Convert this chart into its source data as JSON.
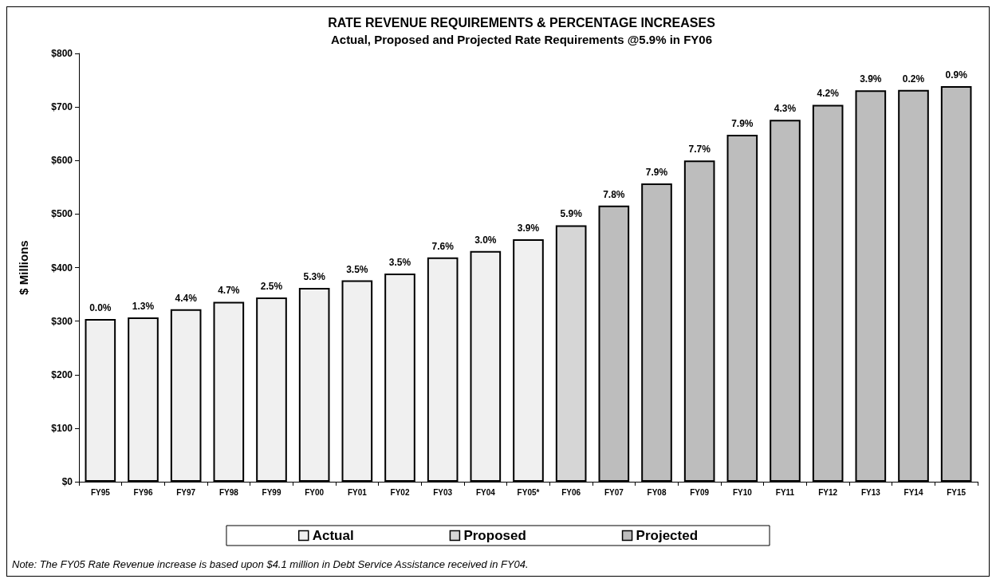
{
  "chart_data": {
    "type": "bar",
    "title": "RATE REVENUE REQUIREMENTS & PERCENTAGE INCREASES",
    "subtitle": "Actual, Proposed and Projected Rate Requirements @5.9% in FY06",
    "ylabel": "$ Millions",
    "categories": [
      "FY95",
      "FY96",
      "FY97",
      "FY98",
      "FY99",
      "FY00",
      "FY01",
      "FY02",
      "FY03",
      "FY04",
      "FY05*",
      "FY06",
      "FY07",
      "FY08",
      "FY09",
      "FY10",
      "FY11",
      "FY12",
      "FY13",
      "FY14",
      "FY15"
    ],
    "stacked": true,
    "series": [
      {
        "name": "Actual",
        "color": "#f0f0f0",
        "values": [
          304,
          307,
          322,
          336,
          344,
          362,
          376,
          389,
          419,
          431,
          453,
          null,
          null,
          null,
          null,
          null,
          null,
          null,
          null,
          null,
          null
        ]
      },
      {
        "name": "Proposed",
        "color": "#d6d6d6",
        "values": [
          null,
          null,
          null,
          null,
          null,
          null,
          null,
          null,
          null,
          null,
          null,
          479,
          null,
          null,
          null,
          null,
          null,
          null,
          null,
          null,
          null
        ]
      },
      {
        "name": "Projected",
        "color": "#bdbdbd",
        "values": [
          null,
          null,
          null,
          null,
          null,
          null,
          null,
          null,
          null,
          null,
          null,
          null,
          516,
          557,
          600,
          648,
          676,
          704,
          731,
          732,
          739
        ]
      }
    ],
    "ylim": [
      0,
      800
    ],
    "yticks": [
      {
        "value": 0,
        "label": "$0"
      },
      {
        "value": 100,
        "label": "$100"
      },
      {
        "value": 200,
        "label": "$200"
      },
      {
        "value": 300,
        "label": "$300"
      },
      {
        "value": 400,
        "label": "$400"
      },
      {
        "value": 500,
        "label": "$500"
      },
      {
        "value": 600,
        "label": "$600"
      },
      {
        "value": 700,
        "label": "$700"
      },
      {
        "value": 800,
        "label": "$800"
      }
    ],
    "grid": false,
    "legend": "bottom",
    "annotations": [
      {
        "text": "0.0%",
        "x": "FY95",
        "y": 304
      },
      {
        "text": "1.3%",
        "x": "FY96",
        "y": 307
      },
      {
        "text": "4.4%",
        "x": "FY97",
        "y": 322
      },
      {
        "text": "4.7%",
        "x": "FY98",
        "y": 336
      },
      {
        "text": "2.5%",
        "x": "FY99",
        "y": 344
      },
      {
        "text": "5.3%",
        "x": "FY00",
        "y": 362
      },
      {
        "text": "3.5%",
        "x": "FY01",
        "y": 376
      },
      {
        "text": "3.5%",
        "x": "FY02",
        "y": 389
      },
      {
        "text": "7.6%",
        "x": "FY03",
        "y": 419
      },
      {
        "text": "3.0%",
        "x": "FY04",
        "y": 431
      },
      {
        "text": "3.9%",
        "x": "FY05*",
        "y": 453
      },
      {
        "text": "5.9%",
        "x": "FY06",
        "y": 479
      },
      {
        "text": "7.8%",
        "x": "FY07",
        "y": 516
      },
      {
        "text": "7.9%",
        "x": "FY08",
        "y": 557
      },
      {
        "text": "7.7%",
        "x": "FY09",
        "y": 600
      },
      {
        "text": "7.9%",
        "x": "FY10",
        "y": 648
      },
      {
        "text": "4.3%",
        "x": "FY11",
        "y": 676
      },
      {
        "text": "4.2%",
        "x": "FY12",
        "y": 704
      },
      {
        "text": "3.9%",
        "x": "FY13",
        "y": 731
      },
      {
        "text": "0.2%",
        "x": "FY14",
        "y": 732
      },
      {
        "text": "0.9%",
        "x": "FY15",
        "y": 739
      },
      "Note: The FY05 Rate Revenue increase is based upon $4.1 million in Debt Service Assistance received in FY04."
    ]
  }
}
